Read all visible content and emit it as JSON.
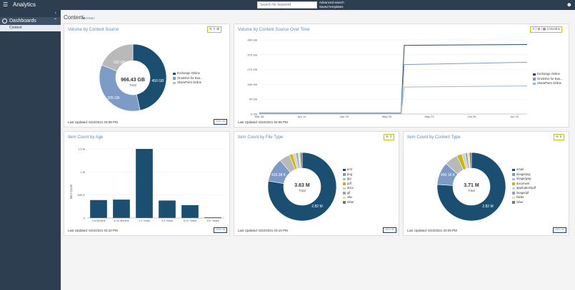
{
  "app": {
    "title": "Analytics"
  },
  "header": {
    "search_placeholder": "Search for keyword",
    "advanced_search": "Advanced search",
    "saved_templates": "Saved templates"
  },
  "sidebar": {
    "section": "Dashboards",
    "items": [
      {
        "label": "Content"
      }
    ]
  },
  "page": {
    "title": "Content",
    "print": "PRINT"
  },
  "colors": {
    "dark": "#1b4f72",
    "mid": "#7c9cc7",
    "light": "#b9b9b9",
    "sidebar": "#2c3e50",
    "highlight": "#c9c400"
  },
  "cards": {
    "volume_source": {
      "title": "Volume by Content Source",
      "total_value": "966.43 GB",
      "total_label": "Total",
      "slice_labels": [
        "450 GB",
        "335 GB",
        "182 GB"
      ],
      "updated": "Last Updated: 6/22/2021 03:09 PM",
      "view_all": "View all",
      "tools": "% ⇕ ⊞"
    },
    "volume_over_time": {
      "title": "Volume by Content Source Over Time",
      "updated": "Last Updated: 6/22/2021 03:09 PM",
      "tools_icons": "⇕ | ⊞ |",
      "period": "3 Months"
    },
    "age": {
      "title": "Item Count by Age",
      "ylabel": "Item Count",
      "updated": "Last Updated: 6/22/2021 03:10 PM",
      "view_all": "View all"
    },
    "file_type": {
      "title": "Item Count by File Type",
      "total_value": "3.63 M",
      "total_label": "Total",
      "slice_labels": [
        "2.82 M",
        "410.38 K"
      ],
      "updated": "Last Updated: 6/22/2021 03:10 PM",
      "view_all": "View all",
      "tools": "% ⇕"
    },
    "content_type": {
      "title": "Item Count by Content Type",
      "total_value": "3.71 M",
      "total_label": "Total",
      "slice_labels": [
        "2.82 M",
        "400.16 K"
      ],
      "updated": "Last Updated: 6/22/2021 03:09 PM",
      "view_all": "View all",
      "tools": "% ⇕"
    }
  },
  "chart_data": [
    {
      "type": "pie",
      "title": "Volume by Content Source",
      "categories": [
        "Exchange Online",
        "OneDrive for Bus...",
        "SharePoint Online"
      ],
      "values": [
        450,
        335,
        182
      ],
      "unit": "GB",
      "legend": "right",
      "colors": [
        "#1b4f72",
        "#7c9cc7",
        "#b9b9b9"
      ]
    },
    {
      "type": "line",
      "title": "Volume by Content Source Over Time",
      "x_ticks": [
        "Mar 28",
        "Apr 11",
        "Apr 25",
        "May 09",
        "May 23",
        "Jun 06",
        "Jun 20"
      ],
      "y_ticks": [
        "0 GB",
        "90 GB",
        "180 GB",
        "270 GB",
        "375 GB",
        "480 GB"
      ],
      "ylim": [
        0,
        480
      ],
      "x_range": [
        "2021-03-28",
        "2021-06-21"
      ],
      "legend": "right",
      "series": [
        {
          "name": "Exchange Online",
          "color": "#1b4f72",
          "points": [
            [
              "2021-03-28",
              6
            ],
            [
              "2021-05-12",
              6
            ],
            [
              "2021-05-13",
              445
            ],
            [
              "2021-06-21",
              450
            ]
          ]
        },
        {
          "name": "OneDrive for Bus...",
          "color": "#7c9cc7",
          "points": [
            [
              "2021-03-28",
              4
            ],
            [
              "2021-05-12",
              4
            ],
            [
              "2021-05-13",
              320
            ],
            [
              "2021-06-21",
              335
            ]
          ]
        },
        {
          "name": "SharePoint Online",
          "color": "#9fb6cf",
          "points": [
            [
              "2021-03-28",
              2
            ],
            [
              "2021-05-12",
              2
            ],
            [
              "2021-05-13",
              175
            ],
            [
              "2021-06-21",
              182
            ]
          ]
        }
      ]
    },
    {
      "type": "bar",
      "title": "Item Count by Age",
      "categories": [
        "0-6 Months",
        "6-12 Months",
        "1-2 Years",
        "2-5 Years",
        "5-10 Years",
        "10+ Years"
      ],
      "values": [
        390000,
        400000,
        1500000,
        380000,
        280000,
        15000
      ],
      "y_ticks": [
        "0",
        "500 K",
        "1 M",
        "1.5 M"
      ],
      "ylim": [
        0,
        1500000
      ],
      "ylabel": "Item Count",
      "color": "#1b4f72"
    },
    {
      "type": "pie",
      "title": "Item Count by File Type",
      "categories": [
        "eml",
        "png",
        "jpg",
        "pdf",
        "docx",
        "gif",
        "xlsx",
        "other"
      ],
      "values": [
        2820000,
        410380,
        180000,
        60000,
        50000,
        40000,
        35000,
        35000
      ],
      "legend": "right",
      "colors": [
        "#1b4f72",
        "#7c9cc7",
        "#b9b9b9",
        "#c8b800",
        "#d0d0d0",
        "#8da5c3",
        "#e6e3a0",
        "#777777"
      ]
    },
    {
      "type": "pie",
      "title": "Item Count by Content Type",
      "categories": [
        "email",
        "image/png",
        "image/jpeg",
        "document",
        "application/pdf",
        "image/gif",
        "folder",
        "other"
      ],
      "values": [
        2820000,
        400160,
        230000,
        90000,
        60000,
        40000,
        35000,
        35000
      ],
      "legend": "right",
      "colors": [
        "#1b4f72",
        "#7c9cc7",
        "#b9b9b9",
        "#c8b800",
        "#d0d0d0",
        "#8da5c3",
        "#e6e3a0",
        "#777777"
      ]
    }
  ]
}
